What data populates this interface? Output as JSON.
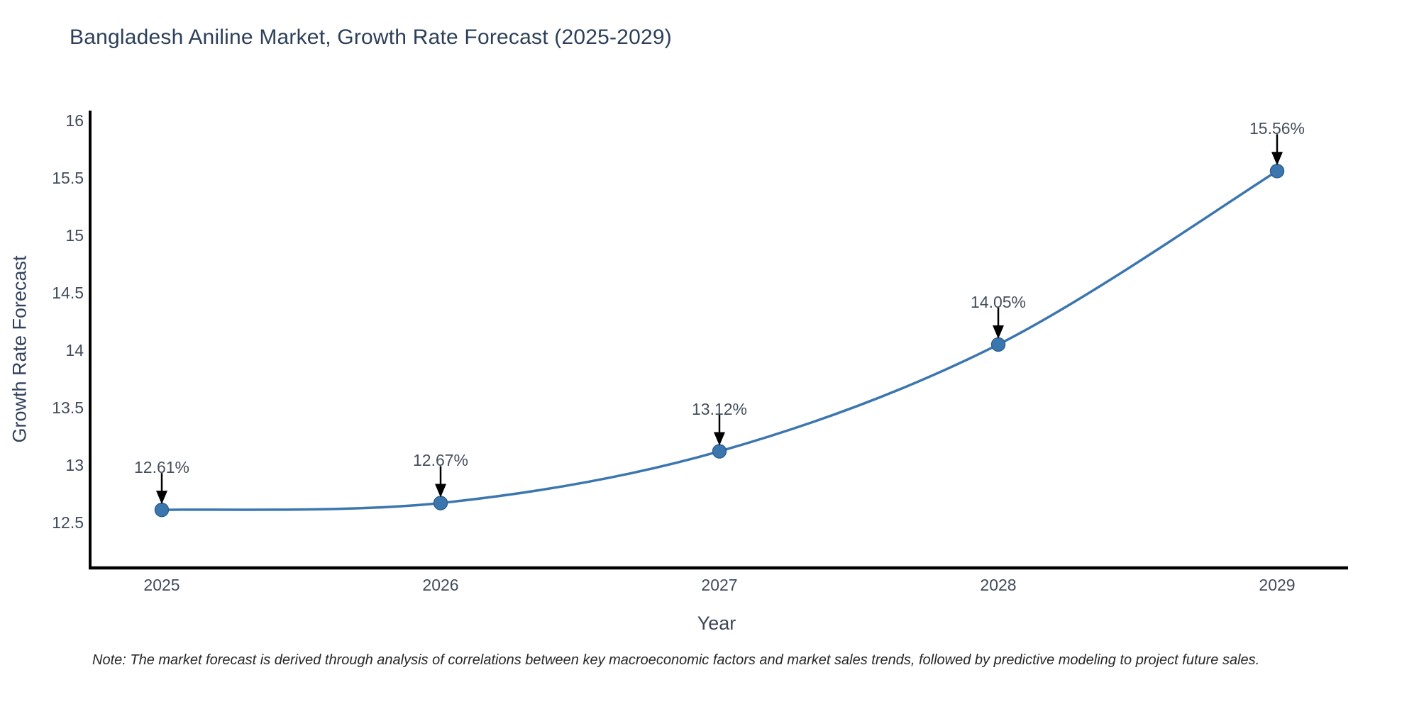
{
  "title": "Bangladesh Aniline Market, Growth Rate Forecast (2025-2029)",
  "note": "Note: The market forecast is derived through analysis of correlations between key macroeconomic factors and market sales trends, followed by predictive modeling to project future sales.",
  "chart_data": {
    "type": "line",
    "title": "Bangladesh Aniline Market, Growth Rate Forecast (2025-2029)",
    "xlabel": "Year",
    "ylabel": "Growth Rate Forecast",
    "x": [
      2025,
      2026,
      2027,
      2028,
      2029
    ],
    "values": [
      12.61,
      12.67,
      13.12,
      14.05,
      15.56
    ],
    "point_labels": [
      "12.61%",
      "12.67%",
      "13.12%",
      "14.05%",
      "15.56%"
    ],
    "xticks": [
      "2025",
      "2026",
      "2027",
      "2028",
      "2029"
    ],
    "yticks": [
      12.5,
      13,
      13.5,
      14,
      14.5,
      15,
      15.5,
      16
    ],
    "ylim": [
      12.1,
      16.05
    ],
    "grid": false,
    "legend": "none",
    "smooth": true,
    "line_color": "#3c76af",
    "marker_color": "#3c76af",
    "marker_edge_color": "#2f618f",
    "axis_color": "#000000",
    "arrow_color": "#000000"
  }
}
